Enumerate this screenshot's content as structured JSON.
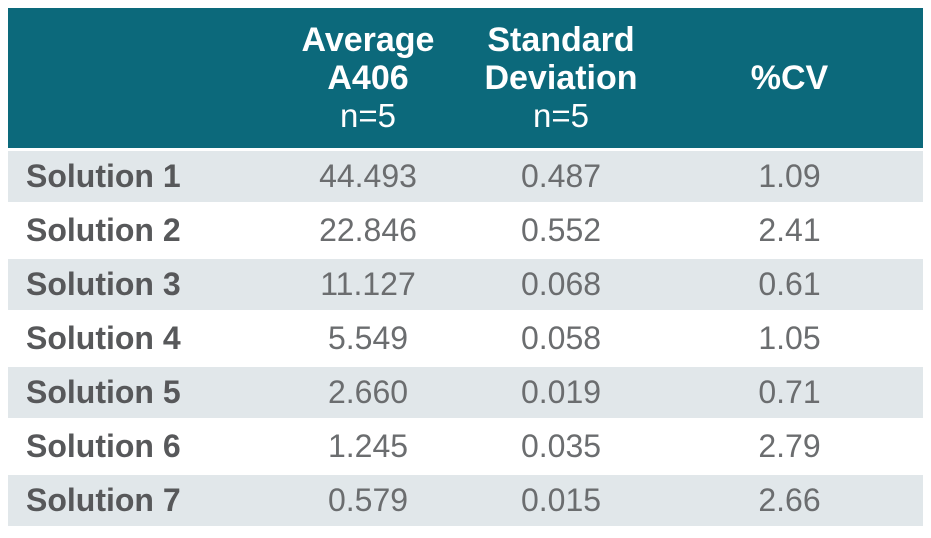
{
  "colors": {
    "header_bg": "#0c697b",
    "header_text": "#ffffff",
    "row_alt_bg": "#e1e7ea",
    "row_bg": "#ffffff",
    "label_text": "#57585a",
    "value_text": "#6b6d6f"
  },
  "table": {
    "columns": [
      {
        "line1": "",
        "line2": "",
        "sub": ""
      },
      {
        "line1": "Average",
        "line2": "A406",
        "sub": "n=5"
      },
      {
        "line1": "Standard",
        "line2": "Deviation",
        "sub": "n=5"
      },
      {
        "line1": "%CV"
      }
    ],
    "rows": [
      {
        "label": "Solution 1",
        "average_a406": "44.493",
        "std_dev": "0.487",
        "pct_cv": "1.09"
      },
      {
        "label": "Solution 2",
        "average_a406": "22.846",
        "std_dev": "0.552",
        "pct_cv": "2.41"
      },
      {
        "label": "Solution 3",
        "average_a406": "11.127",
        "std_dev": "0.068",
        "pct_cv": "0.61"
      },
      {
        "label": "Solution 4",
        "average_a406": "5.549",
        "std_dev": "0.058",
        "pct_cv": "1.05"
      },
      {
        "label": "Solution 5",
        "average_a406": "2.660",
        "std_dev": "0.019",
        "pct_cv": "0.71"
      },
      {
        "label": "Solution 6",
        "average_a406": "1.245",
        "std_dev": "0.035",
        "pct_cv": "2.79"
      },
      {
        "label": "Solution 7",
        "average_a406": "0.579",
        "std_dev": "0.015",
        "pct_cv": "2.66"
      }
    ]
  },
  "chart_data": {
    "type": "table",
    "title": "",
    "columns": [
      "",
      "Average A406 n=5",
      "Standard Deviation n=5",
      "%CV"
    ],
    "rows": [
      [
        "Solution 1",
        44.493,
        0.487,
        1.09
      ],
      [
        "Solution 2",
        22.846,
        0.552,
        2.41
      ],
      [
        "Solution 3",
        11.127,
        0.068,
        0.61
      ],
      [
        "Solution 4",
        5.549,
        0.058,
        1.05
      ],
      [
        "Solution 5",
        2.66,
        0.019,
        0.71
      ],
      [
        "Solution 6",
        1.245,
        0.035,
        2.79
      ],
      [
        "Solution 7",
        0.579,
        0.015,
        2.66
      ]
    ],
    "layout_hints": {
      "header_background": "#0c697b",
      "zebra_striping": true,
      "first_column_bold": true
    }
  }
}
